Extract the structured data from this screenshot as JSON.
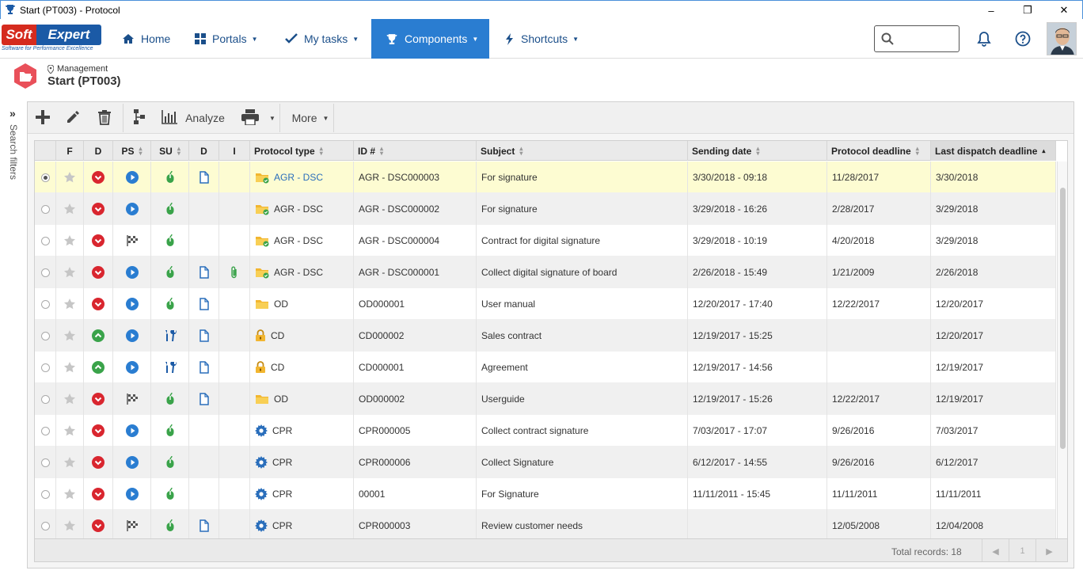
{
  "window": {
    "title": "Start (PT003) - Protocol",
    "minimize_label": "–",
    "restore_label": "❐",
    "close_label": "✕"
  },
  "nav": {
    "logo_soft": "Soft",
    "logo_expert": "Expert",
    "logo_tagline": "Software for Performance Excellence",
    "items": [
      {
        "label": "Home",
        "icon": "home-icon"
      },
      {
        "label": "Portals",
        "icon": "portals-icon"
      },
      {
        "label": "My tasks",
        "icon": "check-icon"
      },
      {
        "label": "Components",
        "icon": "trophy-icon",
        "active": true
      },
      {
        "label": "Shortcuts",
        "icon": "bolt-icon"
      }
    ],
    "search_placeholder": "",
    "accent_color": "#2a7dd1"
  },
  "breadcrumb": {
    "parent": "Management",
    "title": "Start (PT003)"
  },
  "side_filter": {
    "label": "Search filters"
  },
  "toolbar": {
    "analyze_label": "Analyze",
    "more_label": "More"
  },
  "grid": {
    "columns": [
      "",
      "F",
      "D",
      "PS",
      "SU",
      "D",
      "I",
      "Protocol type",
      "ID #",
      "Subject",
      "Sending date",
      "Protocol deadline",
      "Last dispatch deadline"
    ],
    "rows": [
      {
        "selected": true,
        "d": "red-down",
        "ps": "play",
        "su": "mouse",
        "doc": true,
        "att": false,
        "pt_icon": "folder-check",
        "protocol_type": "AGR - DSC",
        "pt_link": true,
        "id": "AGR - DSC000003",
        "subject": "For signature",
        "sending_date": "3/30/2018 - 09:18",
        "protocol_deadline": "11/28/2017",
        "last_dispatch": "3/30/2018"
      },
      {
        "selected": false,
        "d": "red-down",
        "ps": "play",
        "su": "mouse",
        "doc": false,
        "att": false,
        "pt_icon": "folder-check",
        "protocol_type": "AGR - DSC",
        "pt_link": false,
        "id": "AGR - DSC000002",
        "subject": "For signature",
        "sending_date": "3/29/2018 - 16:26",
        "protocol_deadline": "2/28/2017",
        "last_dispatch": "3/29/2018"
      },
      {
        "selected": false,
        "d": "red-down",
        "ps": "flag",
        "su": "mouse",
        "doc": false,
        "att": false,
        "pt_icon": "folder-check",
        "protocol_type": "AGR - DSC",
        "pt_link": false,
        "id": "AGR - DSC000004",
        "subject": "Contract for digital signature",
        "sending_date": "3/29/2018 - 10:19",
        "protocol_deadline": "4/20/2018",
        "last_dispatch": "3/29/2018"
      },
      {
        "selected": false,
        "d": "red-down",
        "ps": "play",
        "su": "mouse",
        "doc": true,
        "att": true,
        "pt_icon": "folder-check",
        "protocol_type": "AGR - DSC",
        "pt_link": false,
        "id": "AGR - DSC000001",
        "subject": "Collect digital signature of board",
        "sending_date": "2/26/2018 - 15:49",
        "protocol_deadline": "1/21/2009",
        "last_dispatch": "2/26/2018"
      },
      {
        "selected": false,
        "d": "red-down",
        "ps": "play",
        "su": "mouse",
        "doc": true,
        "att": false,
        "pt_icon": "folder",
        "protocol_type": "OD",
        "pt_link": false,
        "id": "OD000001",
        "subject": "User manual",
        "sending_date": "12/20/2017 - 17:40",
        "protocol_deadline": "12/22/2017",
        "last_dispatch": "12/20/2017"
      },
      {
        "selected": false,
        "d": "green-up",
        "ps": "play",
        "su": "tools",
        "doc": true,
        "att": false,
        "pt_icon": "lock",
        "protocol_type": "CD",
        "pt_link": false,
        "id": "CD000002",
        "subject": "Sales contract",
        "sending_date": "12/19/2017 - 15:25",
        "protocol_deadline": "",
        "last_dispatch": "12/20/2017"
      },
      {
        "selected": false,
        "d": "green-up",
        "ps": "play",
        "su": "tools",
        "doc": true,
        "att": false,
        "pt_icon": "lock",
        "protocol_type": "CD",
        "pt_link": false,
        "id": "CD000001",
        "subject": "Agreement",
        "sending_date": "12/19/2017 - 14:56",
        "protocol_deadline": "",
        "last_dispatch": "12/19/2017"
      },
      {
        "selected": false,
        "d": "red-down",
        "ps": "flag",
        "su": "mouse",
        "doc": true,
        "att": false,
        "pt_icon": "folder",
        "protocol_type": "OD",
        "pt_link": false,
        "id": "OD000002",
        "subject": "Userguide",
        "sending_date": "12/19/2017 - 15:26",
        "protocol_deadline": "12/22/2017",
        "last_dispatch": "12/19/2017"
      },
      {
        "selected": false,
        "d": "red-down",
        "ps": "play",
        "su": "mouse",
        "doc": false,
        "att": false,
        "pt_icon": "gear",
        "protocol_type": "CPR",
        "pt_link": false,
        "id": "CPR000005",
        "subject": "Collect contract signature",
        "sending_date": "7/03/2017 - 17:07",
        "protocol_deadline": "9/26/2016",
        "last_dispatch": "7/03/2017"
      },
      {
        "selected": false,
        "d": "red-down",
        "ps": "play",
        "su": "mouse",
        "doc": false,
        "att": false,
        "pt_icon": "gear",
        "protocol_type": "CPR",
        "pt_link": false,
        "id": "CPR000006",
        "subject": "Collect Signature",
        "sending_date": "6/12/2017 - 14:55",
        "protocol_deadline": "9/26/2016",
        "last_dispatch": "6/12/2017"
      },
      {
        "selected": false,
        "d": "red-down",
        "ps": "play",
        "su": "mouse",
        "doc": false,
        "att": false,
        "pt_icon": "gear",
        "protocol_type": "CPR",
        "pt_link": false,
        "id": "00001",
        "subject": "For Signature",
        "sending_date": "11/11/2011 - 15:45",
        "protocol_deadline": "11/11/2011",
        "last_dispatch": "11/11/2011"
      },
      {
        "selected": false,
        "d": "red-down",
        "ps": "flag",
        "su": "mouse",
        "doc": true,
        "att": false,
        "pt_icon": "gear",
        "protocol_type": "CPR",
        "pt_link": false,
        "id": "CPR000003",
        "subject": "Review customer needs",
        "sending_date": "",
        "protocol_deadline": "12/05/2008",
        "last_dispatch": "12/04/2008"
      }
    ],
    "footer": {
      "total_label": "Total records: 18",
      "page": "1"
    }
  }
}
